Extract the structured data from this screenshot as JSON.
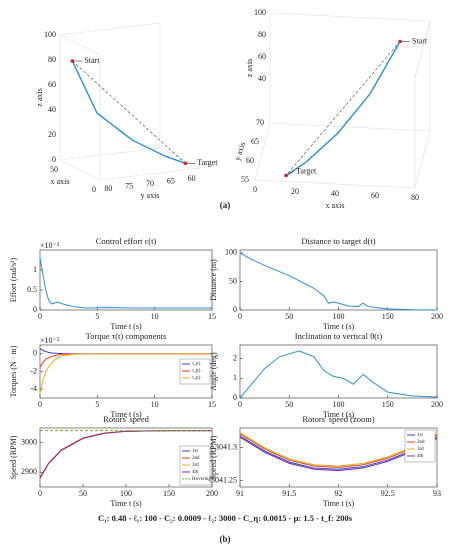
{
  "panel_labels": [
    "(a)",
    "(b)"
  ],
  "caption": "C₁: 0.48 - ℓ₁: 100 - C₂: 0.0009 - ℓ₂: 3000 - C_η: 0.0015 - μ: 1.5 - t_f: 200s",
  "chart_data": [
    {
      "type": "line3d",
      "xlabel": "x axis",
      "ylabel": "y axis",
      "zlabel": "z axis",
      "color": "#2f8fd0",
      "xlim": [
        0,
        50
      ],
      "xticks": [
        0,
        50
      ],
      "ylim": [
        58,
        82
      ],
      "yticks": [
        60,
        65,
        70,
        75,
        80
      ],
      "zlim": [
        0,
        100
      ],
      "zticks": [
        0,
        20,
        40,
        60,
        80,
        100
      ],
      "start_label": "Start",
      "target_label": "Target",
      "x": [
        45,
        35,
        22,
        12,
        8
      ],
      "y": [
        80,
        76,
        70,
        64,
        60
      ],
      "z": [
        80,
        40,
        20,
        8,
        2
      ]
    },
    {
      "type": "line3d",
      "xlabel": "x axis",
      "ylabel": "y axis",
      "zlabel": "z axis",
      "color": "#2f8fd0",
      "xlim": [
        0,
        80
      ],
      "xticks": [
        0,
        20,
        40,
        60,
        80
      ],
      "ylim": [
        55,
        70
      ],
      "yticks": [
        55,
        60,
        65,
        70
      ],
      "zlim": [
        0,
        100
      ],
      "zticks": [
        40,
        60,
        80,
        100
      ],
      "start_label": "Start",
      "target_label": "Target",
      "x": [
        65,
        52,
        38,
        24,
        15
      ],
      "y": [
        70,
        66,
        62,
        58,
        56
      ],
      "z": [
        80,
        45,
        22,
        8,
        2
      ]
    },
    {
      "type": "line",
      "title": "Control effort ε(t)",
      "xlabel": "Time t (s)",
      "ylabel": "Effort (rad/s²)",
      "exponent": "×10⁻³",
      "xlim": [
        0,
        15
      ],
      "xticks": [
        0,
        5,
        10,
        15
      ],
      "ylim": [
        0,
        1.5
      ],
      "yticks": [
        0,
        0.5,
        1
      ],
      "x": [
        0,
        0.25,
        0.5,
        0.75,
        1,
        1.5,
        2,
        3,
        4,
        6,
        8,
        10,
        12,
        15
      ],
      "series": [
        {
          "color": "#2f8fd0",
          "values": [
            1.3,
            0.9,
            0.5,
            0.25,
            0.15,
            0.2,
            0.15,
            0.08,
            0.05,
            0.06,
            0.05,
            0.05,
            0.05,
            0.05
          ]
        }
      ]
    },
    {
      "type": "line",
      "title": "Distance to target d(t)",
      "xlabel": "Time t (s)",
      "ylabel": "Distance (m)",
      "xlim": [
        0,
        200
      ],
      "xticks": [
        0,
        50,
        100,
        150,
        200
      ],
      "ylim": [
        0,
        105
      ],
      "yticks": [
        0,
        50,
        100
      ],
      "x": [
        0,
        10,
        25,
        50,
        75,
        85,
        90,
        95,
        100,
        110,
        120,
        125,
        130,
        150,
        175,
        200
      ],
      "series": [
        {
          "color": "#2f8fd0",
          "values": [
            100,
            90,
            78,
            60,
            38,
            25,
            12,
            14,
            12,
            7,
            6,
            12,
            6,
            2,
            0.5,
            0
          ]
        }
      ]
    },
    {
      "type": "line",
      "title": "Torque τ(t) components",
      "xlabel": "Time t (s)",
      "ylabel": "Torques (N · m)",
      "exponent": "×10⁻⁵",
      "legend": "right",
      "xlim": [
        0,
        15
      ],
      "xticks": [
        0,
        5,
        10,
        15
      ],
      "ylim": [
        -5,
        1
      ],
      "yticks": [
        -4,
        -2,
        0
      ],
      "x": [
        0,
        0.25,
        0.5,
        1,
        1.5,
        2,
        3,
        5,
        10,
        15
      ],
      "series": [
        {
          "name": "τ₁(t)",
          "color": "#3b3bd6",
          "values": [
            0.6,
            0.4,
            0.25,
            0.1,
            0.05,
            0.02,
            0,
            0,
            0,
            0
          ]
        },
        {
          "name": "τ₂(t)",
          "color": "#d9421a",
          "values": [
            -1.5,
            -1,
            -0.6,
            -0.3,
            -0.15,
            -0.05,
            0,
            0,
            0,
            0
          ]
        },
        {
          "name": "τ₃(t)",
          "color": "#e0b020",
          "values": [
            -4.5,
            -3,
            -2,
            -1,
            -0.5,
            -0.2,
            -0.05,
            0,
            0,
            0
          ]
        }
      ]
    },
    {
      "type": "line",
      "title": "Inclination to vertical θ(t)",
      "xlabel": "Time t (s)",
      "ylabel": "Angle (deg)",
      "xlim": [
        0,
        200
      ],
      "xticks": [
        0,
        50,
        100,
        150,
        200
      ],
      "ylim": [
        0,
        2.7
      ],
      "yticks": [
        0,
        1,
        2
      ],
      "x": [
        0,
        10,
        25,
        40,
        60,
        75,
        85,
        95,
        105,
        115,
        125,
        135,
        150,
        175,
        200
      ],
      "series": [
        {
          "color": "#2f8fd0",
          "values": [
            0,
            0.6,
            1.5,
            2.1,
            2.4,
            2.1,
            1.4,
            1.1,
            1.0,
            0.7,
            1.2,
            0.8,
            0.3,
            0.1,
            0.05
          ]
        }
      ]
    },
    {
      "type": "line",
      "title": "Rotors' speed",
      "xlabel": "Time t (s)",
      "ylabel": "Speed (RPM)",
      "legend": "lower right",
      "xlim": [
        0,
        200
      ],
      "xticks": [
        0,
        50,
        100,
        150,
        200
      ],
      "ylim": [
        2850,
        3050
      ],
      "yticks": [
        2900,
        3000
      ],
      "x": [
        0,
        10,
        25,
        50,
        75,
        100,
        150,
        200
      ],
      "series": [
        {
          "name": "1st",
          "color": "#3b3bd6",
          "values": [
            2880,
            2930,
            2975,
            3015,
            3032,
            3039,
            3041,
            3041
          ]
        },
        {
          "name": "2nd",
          "color": "#d9421a",
          "values": [
            2881,
            2931,
            2976,
            3016,
            3033,
            3039,
            3041,
            3041
          ]
        },
        {
          "name": "3rd",
          "color": "#e0b020",
          "values": [
            2879,
            2929,
            2974,
            3014,
            3032,
            3039,
            3041,
            3041
          ]
        },
        {
          "name": "4th",
          "color": "#7e2f8e",
          "values": [
            2880,
            2930,
            2975,
            3015,
            3032,
            3039,
            3041,
            3041
          ]
        },
        {
          "name": "Hovering",
          "color": "#77ac30",
          "style": "dashed",
          "values": [
            3041,
            3041,
            3041,
            3041,
            3041,
            3041,
            3041,
            3041
          ]
        }
      ]
    },
    {
      "type": "line",
      "title": "Rotors' speed (zoom)",
      "xlabel": "Time t (s)",
      "ylabel": "Speed (RPM)",
      "legend": "upper right",
      "xlim": [
        91,
        93
      ],
      "xticks": [
        91,
        91.5,
        92,
        92.5,
        93
      ],
      "ylim": [
        3041.24,
        3041.33
      ],
      "yticks": [
        3041.25,
        3041.3
      ],
      "x": [
        91,
        91.25,
        91.5,
        91.75,
        92,
        92.25,
        92.5,
        92.75,
        93
      ],
      "series": [
        {
          "name": "1st",
          "color": "#3b3bd6",
          "values": [
            3041.318,
            3041.295,
            3041.278,
            3041.269,
            3041.267,
            3041.271,
            3041.281,
            3041.296,
            3041.316
          ]
        },
        {
          "name": "2nd",
          "color": "#d9421a",
          "values": [
            3041.321,
            3041.298,
            3041.281,
            3041.272,
            3041.27,
            3041.274,
            3041.284,
            3041.299,
            3041.319
          ]
        },
        {
          "name": "3rd",
          "color": "#e0b020",
          "values": [
            3041.323,
            3041.3,
            3041.283,
            3041.274,
            3041.272,
            3041.276,
            3041.286,
            3041.301,
            3041.321
          ]
        },
        {
          "name": "4th",
          "color": "#7e2f8e",
          "values": [
            3041.316,
            3041.293,
            3041.276,
            3041.267,
            3041.265,
            3041.269,
            3041.279,
            3041.294,
            3041.314
          ]
        }
      ]
    }
  ]
}
